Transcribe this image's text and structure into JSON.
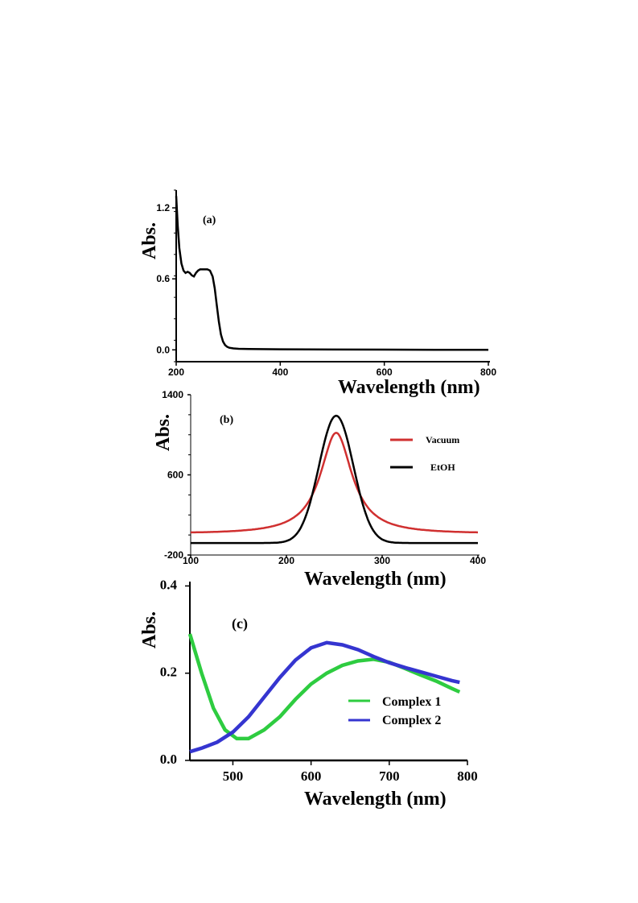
{
  "chart_data": [
    {
      "panel": "(a)",
      "type": "line",
      "xlabel": "Wavelength (nm)",
      "ylabel": "Abs.",
      "xlim": [
        200,
        800
      ],
      "ylim": [
        -0.1,
        1.35
      ],
      "xticks": [
        200,
        400,
        600,
        800
      ],
      "yticks": [
        "0.0",
        "0.6",
        "1.2"
      ],
      "yticks_values": [
        0.0,
        0.6,
        1.2
      ],
      "xticks_labels": [
        "200",
        "400",
        "600",
        "800"
      ],
      "series": [
        {
          "color": "#000000",
          "x": [
            200,
            203,
            206,
            210,
            214,
            218,
            222,
            226,
            230,
            234,
            238,
            242,
            246,
            250,
            255,
            260,
            265,
            270,
            274,
            278,
            282,
            286,
            290,
            294,
            298,
            302,
            310,
            320,
            340,
            400,
            500,
            600,
            700,
            800
          ],
          "y": [
            1.3,
            1.05,
            0.86,
            0.73,
            0.67,
            0.65,
            0.66,
            0.65,
            0.63,
            0.62,
            0.65,
            0.67,
            0.68,
            0.68,
            0.68,
            0.68,
            0.67,
            0.62,
            0.52,
            0.38,
            0.24,
            0.13,
            0.07,
            0.04,
            0.025,
            0.018,
            0.012,
            0.009,
            0.007,
            0.005,
            0.003,
            0.002,
            0.001,
            0.0
          ]
        }
      ]
    },
    {
      "panel": "(b)",
      "type": "line",
      "xlabel": "Wavelength (nm)",
      "ylabel": "Abs.",
      "xlim": [
        100,
        400
      ],
      "ylim": [
        -200,
        1400
      ],
      "xticks": [
        100,
        200,
        300,
        400
      ],
      "xticks_labels": [
        "100",
        "200",
        "300",
        "400"
      ],
      "yticks_values": [
        -200,
        600,
        1400
      ],
      "yticks": [
        "-200",
        "600",
        "1400"
      ],
      "legend": [
        "Vacuum",
        "EtOH"
      ],
      "series": [
        {
          "name": "Vacuum",
          "color": "#d03030",
          "peak": 252,
          "height": 1000,
          "baseline": 20,
          "shape": "lorentzian",
          "width": 22
        },
        {
          "name": "EtOH",
          "color": "#000000",
          "peak": 252,
          "height": 1270,
          "baseline": -80,
          "shape": "gaussian",
          "width": 18
        }
      ]
    },
    {
      "panel": "(c)",
      "type": "line",
      "xlabel": "Wavelength (nm)",
      "ylabel": "Abs.",
      "xlim": [
        445,
        800
      ],
      "ylim": [
        0.0,
        0.41
      ],
      "xticks": [
        500,
        600,
        700,
        800
      ],
      "xticks_labels": [
        "500",
        "600",
        "700",
        "800"
      ],
      "yticks_values": [
        0.0,
        0.2,
        0.4
      ],
      "yticks": [
        "0.0",
        "0.2",
        "0.4"
      ],
      "legend": [
        "Complex 1",
        "Complex 2"
      ],
      "series": [
        {
          "name": "Complex 1",
          "color": "#2ecc40",
          "x": [
            445,
            460,
            475,
            490,
            505,
            520,
            540,
            560,
            580,
            600,
            620,
            640,
            660,
            680,
            700,
            720,
            740,
            760,
            780,
            790
          ],
          "y": [
            0.29,
            0.2,
            0.12,
            0.07,
            0.05,
            0.05,
            0.07,
            0.1,
            0.14,
            0.175,
            0.2,
            0.218,
            0.228,
            0.232,
            0.225,
            0.211,
            0.196,
            0.182,
            0.165,
            0.157
          ]
        },
        {
          "name": "Complex 2",
          "color": "#3535d0",
          "x": [
            445,
            460,
            480,
            500,
            520,
            540,
            560,
            580,
            600,
            620,
            640,
            660,
            680,
            700,
            720,
            740,
            760,
            780,
            790
          ],
          "y": [
            0.02,
            0.028,
            0.042,
            0.065,
            0.1,
            0.145,
            0.19,
            0.23,
            0.258,
            0.27,
            0.265,
            0.254,
            0.238,
            0.224,
            0.213,
            0.203,
            0.193,
            0.183,
            0.179
          ]
        }
      ]
    }
  ]
}
